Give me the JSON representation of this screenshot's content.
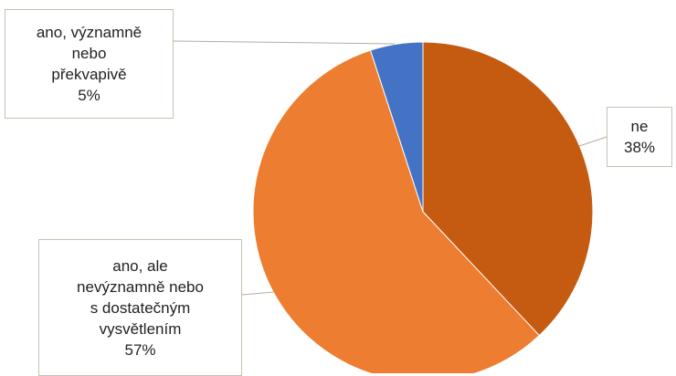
{
  "chart_data": {
    "type": "pie",
    "categories": [
      "ne",
      "ano, ale nevýznamně nebo s dostatečným vysvětlením",
      "ano, významně nebo překvapivě"
    ],
    "values": [
      38,
      57,
      5
    ],
    "value_labels": [
      "38%",
      "57%",
      "5%"
    ],
    "colors": [
      "#c55a11",
      "#ed7d31",
      "#4472c4"
    ]
  }
}
